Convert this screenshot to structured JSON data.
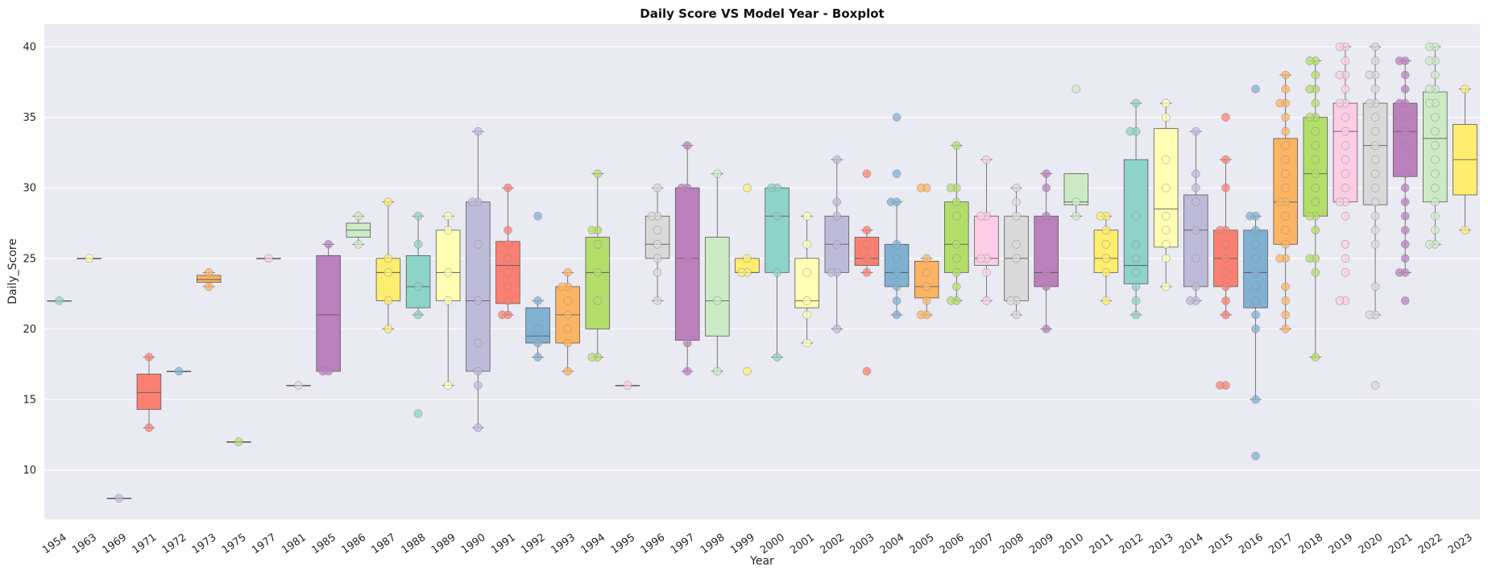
{
  "chart_data": {
    "type": "boxplot",
    "title": "Daily Score VS Model Year - Boxplot",
    "xlabel": "Year",
    "ylabel": "Daily_Score",
    "ylim": [
      6.5,
      41.6
    ],
    "yticks": [
      10,
      15,
      20,
      25,
      30,
      35,
      40
    ],
    "grid": true,
    "background": "#eaeaf2",
    "palette": [
      "#8dd3c7",
      "#ffffb3",
      "#bebada",
      "#fb8072",
      "#80b1d3",
      "#fdb462",
      "#b3de69",
      "#fccde5",
      "#d9d9d9",
      "#bc80bd",
      "#ccebc5",
      "#ffed6f"
    ],
    "categories": [
      "1954",
      "1963",
      "1969",
      "1971",
      "1972",
      "1973",
      "1975",
      "1977",
      "1981",
      "1985",
      "1986",
      "1987",
      "1988",
      "1989",
      "1990",
      "1991",
      "1992",
      "1993",
      "1994",
      "1995",
      "1996",
      "1997",
      "1998",
      "1999",
      "2000",
      "2001",
      "2002",
      "2003",
      "2004",
      "2005",
      "2006",
      "2007",
      "2008",
      "2009",
      "2010",
      "2011",
      "2012",
      "2013",
      "2014",
      "2015",
      "2016",
      "2017",
      "2018",
      "2019",
      "2020",
      "2021",
      "2022",
      "2023"
    ],
    "boxes": [
      {
        "year": "1954",
        "color": "#8dd3c7",
        "min": 22,
        "q1": 22,
        "median": 22,
        "q3": 22,
        "max": 22,
        "points": [
          22
        ]
      },
      {
        "year": "1963",
        "color": "#ffffb3",
        "min": 25,
        "q1": 25,
        "median": 25,
        "q3": 25,
        "max": 25,
        "points": [
          25
        ]
      },
      {
        "year": "1969",
        "color": "#bebada",
        "min": 8,
        "q1": 8,
        "median": 8,
        "q3": 8,
        "max": 8,
        "points": [
          8
        ]
      },
      {
        "year": "1971",
        "color": "#fb8072",
        "min": 13,
        "q1": 14.3,
        "median": 15.5,
        "q3": 16.8,
        "max": 18,
        "points": [
          13,
          18
        ]
      },
      {
        "year": "1972",
        "color": "#80b1d3",
        "min": 17,
        "q1": 17,
        "median": 17,
        "q3": 17,
        "max": 17,
        "points": [
          17
        ]
      },
      {
        "year": "1973",
        "color": "#fdb462",
        "min": 23,
        "q1": 23.3,
        "median": 23.5,
        "q3": 23.8,
        "max": 24,
        "points": [
          23,
          24
        ]
      },
      {
        "year": "1975",
        "color": "#b3de69",
        "min": 12,
        "q1": 12,
        "median": 12,
        "q3": 12,
        "max": 12,
        "points": [
          12
        ]
      },
      {
        "year": "1977",
        "color": "#fccde5",
        "min": 25,
        "q1": 25,
        "median": 25,
        "q3": 25,
        "max": 25,
        "points": [
          25
        ]
      },
      {
        "year": "1981",
        "color": "#d9d9d9",
        "min": 16,
        "q1": 16,
        "median": 16,
        "q3": 16,
        "max": 16,
        "points": [
          16
        ]
      },
      {
        "year": "1985",
        "color": "#bc80bd",
        "min": 17,
        "q1": 17,
        "median": 21,
        "q3": 25.2,
        "max": 26,
        "points": [
          17,
          17,
          26
        ]
      },
      {
        "year": "1986",
        "color": "#ccebc5",
        "min": 26,
        "q1": 26.5,
        "median": 27,
        "q3": 27.5,
        "max": 28,
        "points": [
          26,
          28
        ]
      },
      {
        "year": "1987",
        "color": "#ffed6f",
        "min": 20,
        "q1": 22,
        "median": 24,
        "q3": 25,
        "max": 29,
        "points": [
          20,
          22,
          24,
          25,
          29
        ]
      },
      {
        "year": "1988",
        "color": "#8dd3c7",
        "min": 21,
        "q1": 21.5,
        "median": 23,
        "q3": 25.2,
        "max": 28,
        "points": [
          14,
          21,
          23,
          26,
          28
        ]
      },
      {
        "year": "1989",
        "color": "#ffffb3",
        "min": 16,
        "q1": 22,
        "median": 24,
        "q3": 27,
        "max": 28,
        "points": [
          16,
          22,
          24,
          27,
          28
        ]
      },
      {
        "year": "1990",
        "color": "#bebada",
        "min": 13,
        "q1": 17,
        "median": 22,
        "q3": 29,
        "max": 34,
        "points": [
          13,
          16,
          17,
          19,
          22,
          26,
          29,
          29,
          34
        ]
      },
      {
        "year": "1991",
        "color": "#fb8072",
        "min": 21,
        "q1": 21.8,
        "median": 24.5,
        "q3": 26.2,
        "max": 30,
        "points": [
          21,
          21,
          22,
          23,
          24,
          25,
          26,
          27,
          30
        ]
      },
      {
        "year": "1992",
        "color": "#80b1d3",
        "min": 18,
        "q1": 19,
        "median": 19.5,
        "q3": 21.5,
        "max": 22,
        "points": [
          18,
          19,
          20,
          22,
          28
        ]
      },
      {
        "year": "1993",
        "color": "#fdb462",
        "min": 17,
        "q1": 19,
        "median": 21,
        "q3": 23,
        "max": 24,
        "points": [
          17,
          19,
          20,
          21,
          22,
          23,
          23,
          24
        ]
      },
      {
        "year": "1994",
        "color": "#b3de69",
        "min": 18,
        "q1": 20,
        "median": 24,
        "q3": 26.5,
        "max": 31,
        "points": [
          18,
          18,
          22,
          24,
          26,
          27,
          27,
          31
        ]
      },
      {
        "year": "1995",
        "color": "#fccde5",
        "min": 16,
        "q1": 16,
        "median": 16,
        "q3": 16,
        "max": 16,
        "points": [
          16
        ]
      },
      {
        "year": "1996",
        "color": "#d9d9d9",
        "min": 22,
        "q1": 25,
        "median": 26,
        "q3": 28,
        "max": 30,
        "points": [
          22,
          24,
          25,
          26,
          27,
          28,
          28,
          30
        ]
      },
      {
        "year": "1997",
        "color": "#bc80bd",
        "min": 17,
        "q1": 19.2,
        "median": 25,
        "q3": 30,
        "max": 33,
        "points": [
          17,
          19,
          20,
          25,
          30,
          30,
          33
        ]
      },
      {
        "year": "1998",
        "color": "#ccebc5",
        "min": 17,
        "q1": 19.5,
        "median": 22,
        "q3": 26.5,
        "max": 31,
        "points": [
          17,
          22,
          31
        ]
      },
      {
        "year": "1999",
        "color": "#ffed6f",
        "min": 24,
        "q1": 24,
        "median": 24,
        "q3": 25,
        "max": 25,
        "points": [
          17,
          24,
          24,
          25,
          30
        ]
      },
      {
        "year": "2000",
        "color": "#8dd3c7",
        "min": 18,
        "q1": 24,
        "median": 28,
        "q3": 30,
        "max": 30,
        "points": [
          18,
          24,
          28,
          30,
          30
        ]
      },
      {
        "year": "2001",
        "color": "#ffffb3",
        "min": 19,
        "q1": 21.5,
        "median": 22,
        "q3": 25,
        "max": 28,
        "points": [
          19,
          21,
          22,
          24,
          26,
          28
        ]
      },
      {
        "year": "2002",
        "color": "#bebada",
        "min": 20,
        "q1": 24,
        "median": 26,
        "q3": 28,
        "max": 32,
        "points": [
          20,
          24,
          24,
          26,
          28,
          29,
          32
        ]
      },
      {
        "year": "2003",
        "color": "#fb8072",
        "min": 24,
        "q1": 24.5,
        "median": 25,
        "q3": 26.5,
        "max": 27,
        "points": [
          17,
          24,
          25,
          26,
          27,
          31
        ]
      },
      {
        "year": "2004",
        "color": "#80b1d3",
        "min": 21,
        "q1": 23,
        "median": 24,
        "q3": 26,
        "max": 29,
        "points": [
          21,
          22,
          23,
          24,
          25,
          26,
          29,
          29,
          31,
          35
        ]
      },
      {
        "year": "2005",
        "color": "#fdb462",
        "min": 21,
        "q1": 22.2,
        "median": 23,
        "q3": 24.8,
        "max": 25,
        "points": [
          21,
          21,
          22,
          23,
          24,
          25,
          30,
          30
        ]
      },
      {
        "year": "2006",
        "color": "#b3de69",
        "min": 22,
        "q1": 24,
        "median": 26,
        "q3": 29,
        "max": 33,
        "points": [
          22,
          22,
          23,
          24,
          25,
          26,
          28,
          29,
          30,
          30,
          33
        ]
      },
      {
        "year": "2007",
        "color": "#fccde5",
        "min": 22,
        "q1": 24.5,
        "median": 25,
        "q3": 28,
        "max": 32,
        "points": [
          22,
          24,
          25,
          25,
          28,
          28,
          32
        ]
      },
      {
        "year": "2008",
        "color": "#d9d9d9",
        "min": 21,
        "q1": 22,
        "median": 25,
        "q3": 28,
        "max": 30,
        "points": [
          21,
          22,
          22,
          25,
          26,
          28,
          29,
          30
        ]
      },
      {
        "year": "2009",
        "color": "#bc80bd",
        "min": 20,
        "q1": 23,
        "median": 24,
        "q3": 28,
        "max": 31,
        "points": [
          20,
          23,
          24,
          28,
          30,
          31
        ]
      },
      {
        "year": "2010",
        "color": "#ccebc5",
        "min": 28,
        "q1": 28.8,
        "median": 29,
        "q3": 31,
        "max": 31,
        "points": [
          28,
          29,
          37
        ]
      },
      {
        "year": "2011",
        "color": "#ffed6f",
        "min": 22,
        "q1": 24,
        "median": 25,
        "q3": 27,
        "max": 28,
        "points": [
          22,
          24,
          25,
          26,
          27,
          28,
          28
        ]
      },
      {
        "year": "2012",
        "color": "#8dd3c7",
        "min": 21,
        "q1": 23.2,
        "median": 24.5,
        "q3": 32,
        "max": 36,
        "points": [
          21,
          22,
          23,
          24,
          25,
          26,
          28,
          34,
          34,
          36
        ]
      },
      {
        "year": "2013",
        "color": "#ffffb3",
        "min": 23,
        "q1": 25.8,
        "median": 28.5,
        "q3": 34.2,
        "max": 36,
        "points": [
          23,
          25,
          26,
          27,
          28,
          30,
          32,
          35,
          36
        ]
      },
      {
        "year": "2014",
        "color": "#bebada",
        "min": 22,
        "q1": 23,
        "median": 27,
        "q3": 29.5,
        "max": 34,
        "points": [
          22,
          22,
          23,
          25,
          27,
          29,
          30,
          31,
          34
        ]
      },
      {
        "year": "2015",
        "color": "#fb8072",
        "min": 21,
        "q1": 23,
        "median": 25,
        "q3": 27,
        "max": 32,
        "points": [
          16,
          16,
          21,
          22,
          23,
          24,
          25,
          26,
          27,
          27,
          30,
          32,
          35
        ]
      },
      {
        "year": "2016",
        "color": "#80b1d3",
        "min": 15,
        "q1": 21.5,
        "median": 24,
        "q3": 27,
        "max": 28,
        "points": [
          11,
          15,
          20,
          21,
          22,
          23,
          24,
          25,
          26,
          27,
          28,
          28,
          37
        ]
      },
      {
        "year": "2017",
        "color": "#fdb462",
        "min": 20,
        "q1": 26,
        "median": 29,
        "q3": 33.5,
        "max": 38,
        "points": [
          20,
          21,
          22,
          23,
          25,
          25,
          26,
          27,
          28,
          29,
          29,
          30,
          31,
          32,
          33,
          34,
          35,
          36,
          36,
          37,
          38
        ]
      },
      {
        "year": "2018",
        "color": "#b3de69",
        "min": 18,
        "q1": 28,
        "median": 31,
        "q3": 35,
        "max": 39,
        "points": [
          18,
          24,
          25,
          25,
          27,
          28,
          28,
          29,
          30,
          31,
          32,
          33,
          34,
          35,
          35,
          36,
          37,
          37,
          38,
          39,
          39
        ]
      },
      {
        "year": "2019",
        "color": "#fccde5",
        "min": 29,
        "q1": 29,
        "median": 34,
        "q3": 36,
        "max": 40,
        "points": [
          22,
          22,
          24,
          25,
          26,
          28,
          29,
          29,
          30,
          31,
          32,
          33,
          34,
          35,
          36,
          36,
          37,
          38,
          38,
          39,
          40,
          40
        ]
      },
      {
        "year": "2020",
        "color": "#d9d9d9",
        "min": 21,
        "q1": 28.8,
        "median": 33,
        "q3": 36,
        "max": 40,
        "points": [
          16,
          21,
          21,
          23,
          26,
          27,
          28,
          29,
          30,
          31,
          32,
          33,
          34,
          35,
          36,
          36,
          37,
          38,
          38,
          39,
          40
        ]
      },
      {
        "year": "2021",
        "color": "#bc80bd",
        "min": 24,
        "q1": 30.8,
        "median": 34,
        "q3": 36,
        "max": 39,
        "points": [
          22,
          24,
          24,
          25,
          26,
          27,
          28,
          29,
          30,
          31,
          32,
          33,
          34,
          35,
          35,
          36,
          36,
          37,
          38,
          39,
          39
        ]
      },
      {
        "year": "2022",
        "color": "#ccebc5",
        "min": 26,
        "q1": 29,
        "median": 33.5,
        "q3": 36.8,
        "max": 40,
        "points": [
          26,
          26,
          27,
          28,
          29,
          30,
          31,
          32,
          33,
          34,
          35,
          36,
          36,
          37,
          37,
          38,
          39,
          39,
          40,
          40
        ]
      },
      {
        "year": "2023",
        "color": "#ffed6f",
        "min": 27,
        "q1": 29.5,
        "median": 32,
        "q3": 34.5,
        "max": 37,
        "points": [
          27,
          37
        ]
      }
    ]
  }
}
